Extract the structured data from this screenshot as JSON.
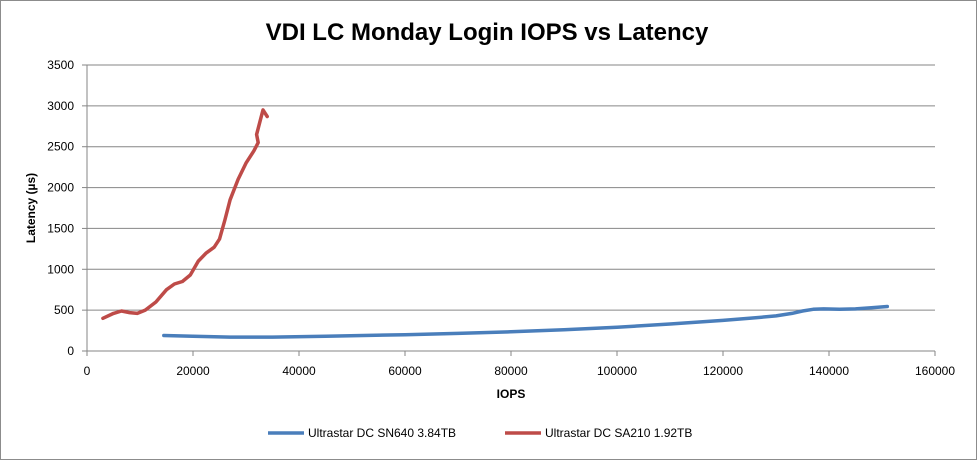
{
  "chart_data": {
    "type": "line",
    "title": "VDI LC Monday Login IOPS vs Latency",
    "xlabel": "IOPS",
    "ylabel": "Latency (µs)",
    "xlim": [
      0,
      160000
    ],
    "ylim": [
      0,
      3500
    ],
    "x_ticks": [
      "0",
      "20000",
      "40000",
      "60000",
      "80000",
      "100000",
      "120000",
      "140000",
      "160000"
    ],
    "y_ticks": [
      "0",
      "500",
      "1000",
      "1500",
      "2000",
      "2500",
      "3000",
      "3500"
    ],
    "grid": "horizontal",
    "legend_position": "bottom",
    "series": [
      {
        "name": "Ultrastar DC SN640 3.84TB",
        "color": "#4a7ebb",
        "points": [
          [
            14500,
            190
          ],
          [
            20000,
            180
          ],
          [
            27000,
            170
          ],
          [
            35000,
            170
          ],
          [
            45000,
            180
          ],
          [
            60000,
            200
          ],
          [
            70000,
            215
          ],
          [
            80000,
            235
          ],
          [
            90000,
            260
          ],
          [
            100000,
            290
          ],
          [
            110000,
            330
          ],
          [
            120000,
            375
          ],
          [
            125000,
            400
          ],
          [
            130000,
            430
          ],
          [
            133000,
            460
          ],
          [
            135000,
            490
          ],
          [
            137000,
            510
          ],
          [
            139000,
            515
          ],
          [
            142000,
            510
          ],
          [
            145000,
            515
          ],
          [
            148000,
            530
          ],
          [
            151000,
            545
          ]
        ]
      },
      {
        "name": "Ultrastar DC SA210 1.92TB",
        "color": "#be4b48",
        "points": [
          [
            3000,
            400
          ],
          [
            5000,
            460
          ],
          [
            6500,
            490
          ],
          [
            8000,
            470
          ],
          [
            9500,
            460
          ],
          [
            11000,
            500
          ],
          [
            13000,
            600
          ],
          [
            15000,
            750
          ],
          [
            16500,
            820
          ],
          [
            18000,
            850
          ],
          [
            19500,
            930
          ],
          [
            21000,
            1100
          ],
          [
            22500,
            1200
          ],
          [
            24000,
            1270
          ],
          [
            25000,
            1370
          ],
          [
            26000,
            1600
          ],
          [
            27000,
            1850
          ],
          [
            28500,
            2100
          ],
          [
            30000,
            2300
          ],
          [
            31500,
            2450
          ],
          [
            32300,
            2550
          ],
          [
            32000,
            2650
          ],
          [
            32600,
            2800
          ],
          [
            33200,
            2950
          ],
          [
            34000,
            2870
          ]
        ]
      }
    ]
  }
}
